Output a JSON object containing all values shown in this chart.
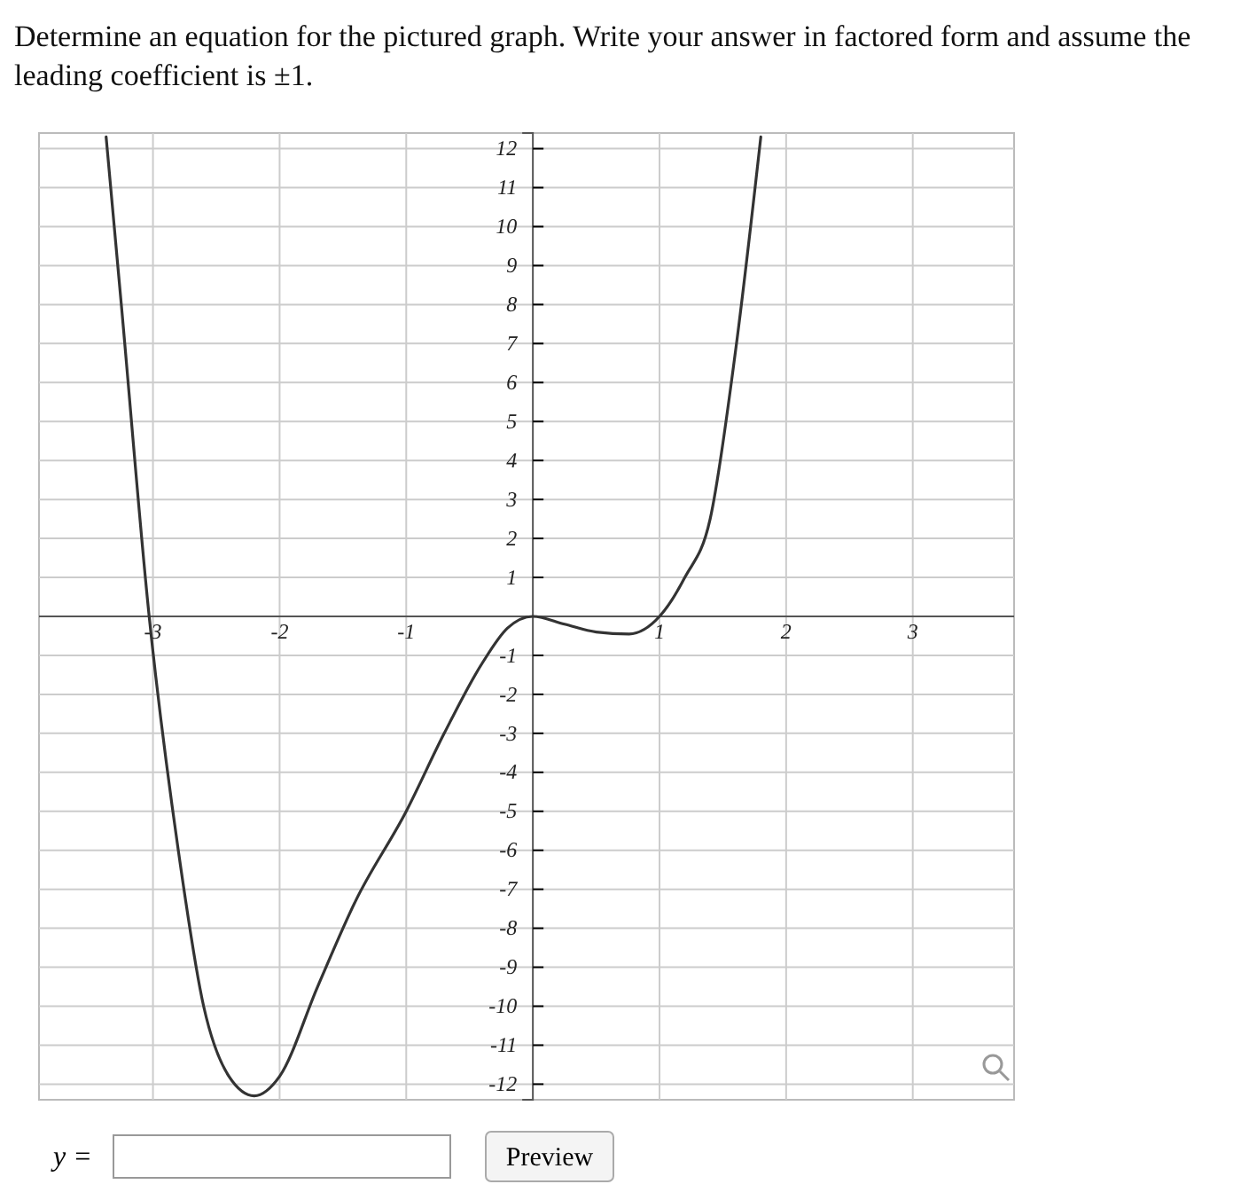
{
  "chart_data": {
    "type": "line",
    "title": "Determine an equation for the pictured graph. Write your answer in factored form and assume the leading coefficient is ±1.",
    "xlim": [
      -3.9,
      3.8
    ],
    "ylim": [
      -12.4,
      12.4
    ],
    "xticks": [
      -3,
      -2,
      -1,
      1,
      2,
      3
    ],
    "yticks": [
      -12,
      -11,
      -10,
      -9,
      -8,
      -7,
      -6,
      -5,
      -4,
      -3,
      -2,
      -1,
      1,
      2,
      3,
      4,
      5,
      6,
      7,
      8,
      9,
      10,
      11,
      12
    ],
    "grid": true,
    "marker": "none",
    "line_style": "solid",
    "series": [
      {
        "color": "#333333",
        "x": [
          -3.37,
          -3.25,
          -3.03,
          -2.8,
          -2.6,
          -2.4,
          -2.2,
          -2.0,
          -1.7,
          -1.4,
          -1.0,
          -0.7,
          -0.4,
          -0.2,
          0,
          0.25,
          0.5,
          0.76,
          1.0,
          1.2,
          1.4,
          1.6,
          1.8
        ],
        "values": [
          12.3,
          8,
          0,
          -6,
          -10,
          -11.8,
          -12.3,
          -11.8,
          -9.5,
          -7.3,
          -5,
          -3,
          -1.2,
          -0.3,
          0,
          -0.2,
          -0.4,
          -0.45,
          0,
          1,
          2.5,
          6.8,
          12.3
        ]
      }
    ],
    "annotations": [
      "y =",
      "Preview"
    ]
  }
}
